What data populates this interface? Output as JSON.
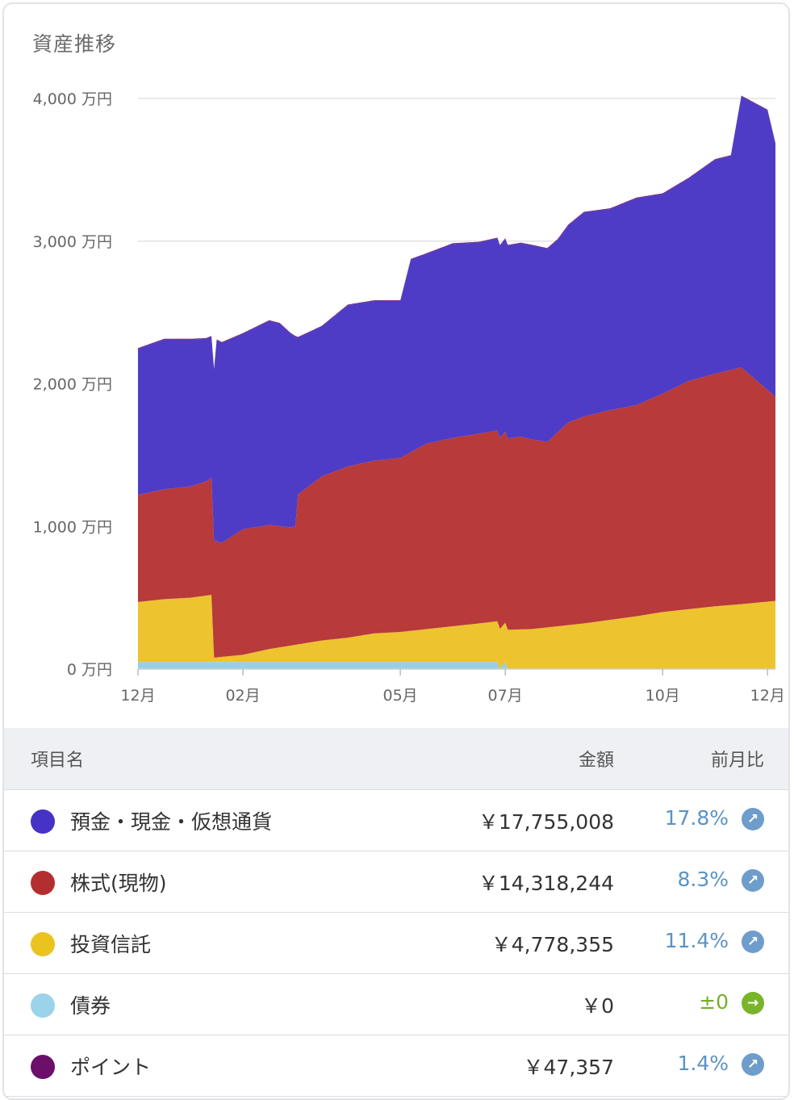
{
  "title": "資産推移",
  "chart_data": {
    "type": "area",
    "stacked": true,
    "y_tick_labels": [
      "4,000 万円",
      "3,000 万円",
      "2,000 万円",
      "1,000 万円",
      "0 万円"
    ],
    "y_ticks": [
      4000,
      3000,
      2000,
      1000,
      0
    ],
    "ylim": [
      0,
      4000
    ],
    "x_tick_labels": [
      "12月",
      "02月",
      "05月",
      "07月",
      "10月",
      "12月"
    ],
    "x_ticks": [
      0,
      2,
      5,
      7,
      10,
      12
    ],
    "xlim": [
      0,
      12.15
    ],
    "unit": "万円",
    "series": [
      {
        "name": "債券",
        "color": "#96d0e8",
        "points": [
          [
            0,
            50
          ],
          [
            1.4,
            50
          ],
          [
            5,
            50
          ],
          [
            6.85,
            50
          ],
          [
            6.9,
            0
          ],
          [
            7,
            50
          ],
          [
            7.05,
            0
          ],
          [
            12.15,
            0
          ]
        ]
      },
      {
        "name": "投資信託",
        "color": "#edc32f",
        "points": [
          [
            0,
            420
          ],
          [
            0.5,
            440
          ],
          [
            1,
            450
          ],
          [
            1.4,
            470
          ],
          [
            1.45,
            30
          ],
          [
            2,
            50
          ],
          [
            2.5,
            90
          ],
          [
            3,
            120
          ],
          [
            3.5,
            150
          ],
          [
            4,
            170
          ],
          [
            4.5,
            200
          ],
          [
            5,
            210
          ],
          [
            5.5,
            230
          ],
          [
            6,
            250
          ],
          [
            6.5,
            270
          ],
          [
            6.85,
            285
          ],
          [
            7,
            275
          ],
          [
            7.5,
            280
          ],
          [
            8,
            300
          ],
          [
            8.5,
            320
          ],
          [
            9,
            345
          ],
          [
            9.5,
            370
          ],
          [
            10,
            400
          ],
          [
            10.5,
            420
          ],
          [
            11,
            440
          ],
          [
            11.5,
            455
          ],
          [
            12.15,
            478
          ]
        ]
      },
      {
        "name": "株式(現物)",
        "color": "#b83a3a",
        "points": [
          [
            0,
            750
          ],
          [
            0.5,
            770
          ],
          [
            1,
            780
          ],
          [
            1.3,
            800
          ],
          [
            1.4,
            820
          ],
          [
            1.45,
            820
          ],
          [
            1.6,
            800
          ],
          [
            2,
            880
          ],
          [
            2.5,
            870
          ],
          [
            2.9,
            830
          ],
          [
            3,
            830
          ],
          [
            3.05,
            1050
          ],
          [
            3.5,
            1150
          ],
          [
            4,
            1200
          ],
          [
            5,
            1220
          ],
          [
            5.5,
            1300
          ],
          [
            6,
            1320
          ],
          [
            6.5,
            1330
          ],
          [
            7,
            1340
          ],
          [
            7.3,
            1350
          ],
          [
            7.8,
            1300
          ],
          [
            8.2,
            1420
          ],
          [
            8.5,
            1450
          ],
          [
            9,
            1470
          ],
          [
            9.5,
            1480
          ],
          [
            10,
            1530
          ],
          [
            10.5,
            1600
          ],
          [
            11,
            1630
          ],
          [
            11.5,
            1660
          ],
          [
            12.15,
            1431
          ]
        ]
      },
      {
        "name": "預金・現金・仮想通貨",
        "color": "#4f3cc6",
        "points": [
          [
            0,
            1025
          ],
          [
            0.5,
            1050
          ],
          [
            1,
            1030
          ],
          [
            1.4,
            990
          ],
          [
            1.5,
            1410
          ],
          [
            2,
            1370
          ],
          [
            2.5,
            1430
          ],
          [
            2.7,
            1420
          ],
          [
            3,
            1330
          ],
          [
            3.05,
            1100
          ],
          [
            3.5,
            1050
          ],
          [
            4,
            1130
          ],
          [
            4.5,
            1120
          ],
          [
            5,
            1100
          ],
          [
            5.2,
            1350
          ],
          [
            5.5,
            1330
          ],
          [
            6,
            1360
          ],
          [
            6.5,
            1340
          ],
          [
            7,
            1350
          ],
          [
            7.5,
            1360
          ],
          [
            8,
            1350
          ],
          [
            8.5,
            1430
          ],
          [
            9,
            1410
          ],
          [
            9.5,
            1450
          ],
          [
            10,
            1400
          ],
          [
            10.5,
            1420
          ],
          [
            11,
            1500
          ],
          [
            11.3,
            1500
          ],
          [
            11.5,
            1900
          ],
          [
            12,
            1960
          ],
          [
            12.15,
            1775
          ]
        ]
      },
      {
        "name": "ポイント",
        "color": "#6b1a6b",
        "points": [
          [
            0,
            5
          ],
          [
            12.15,
            5
          ]
        ]
      }
    ]
  },
  "table": {
    "headers": {
      "name": "項目名",
      "amount": "金額",
      "change": "前月比"
    },
    "rows": [
      {
        "label": "預金・現金・仮想通貨",
        "amount": "￥17,755,008",
        "change": "17.8%",
        "dot_color": "#4433c4",
        "change_color": "#5a93c6",
        "arrow_color": "#6e9dcc",
        "arrow": "↗"
      },
      {
        "label": "株式(現物)",
        "amount": "￥14,318,244",
        "change": "8.3%",
        "dot_color": "#b32f2f",
        "change_color": "#5a93c6",
        "arrow_color": "#6e9dcc",
        "arrow": "↗"
      },
      {
        "label": "投資信託",
        "amount": "￥4,778,355",
        "change": "11.4%",
        "dot_color": "#ebc31f",
        "change_color": "#5a93c6",
        "arrow_color": "#6e9dcc",
        "arrow": "↗"
      },
      {
        "label": "債券",
        "amount": "￥0",
        "change": "±0",
        "dot_color": "#9ad3ea",
        "change_color": "#73b02c",
        "arrow_color": "#79b52b",
        "arrow": "→"
      },
      {
        "label": "ポイント",
        "amount": "￥47,357",
        "change": "1.4%",
        "dot_color": "#6b0f6b",
        "change_color": "#5a93c6",
        "arrow_color": "#6e9dcc",
        "arrow": "↗"
      }
    ]
  }
}
